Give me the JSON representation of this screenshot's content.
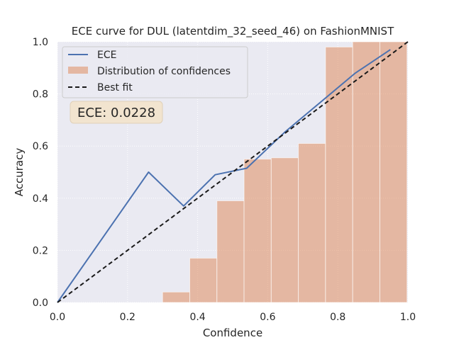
{
  "chart_data": {
    "type": "bar",
    "title": "ECE curve for DUL (latentdim_32_seed_46) on FashionMNIST",
    "xlabel": "Confidence",
    "ylabel": "Accuracy",
    "xlim": [
      0.0,
      1.0
    ],
    "ylim": [
      0.0,
      1.0
    ],
    "xticks": [
      "0.0",
      "0.2",
      "0.4",
      "0.6",
      "0.8",
      "1.0"
    ],
    "yticks": [
      "0.0",
      "0.2",
      "0.4",
      "0.6",
      "0.8",
      "1.0"
    ],
    "grid": true,
    "legend_placement": "upper-left",
    "bars": {
      "name": "Distribution of confidences",
      "color": "#dd8452",
      "bin_width": 0.0775,
      "lefts": [
        0.3,
        0.3775,
        0.455,
        0.5325,
        0.61,
        0.6875,
        0.765,
        0.8425,
        0.92
      ],
      "values": [
        0.04,
        0.17,
        0.39,
        0.55,
        0.555,
        0.61,
        0.98,
        1.0,
        1.0
      ]
    },
    "series": [
      {
        "name": "ECE",
        "color": "#4c72b0",
        "style": "solid",
        "x": [
          0.0,
          0.26,
          0.36,
          0.45,
          0.54,
          0.65,
          0.85,
          0.95
        ],
        "y": [
          0.0,
          0.5,
          0.37,
          0.49,
          0.515,
          0.655,
          0.88,
          0.97
        ]
      },
      {
        "name": "Best fit",
        "color": "#1a1a1a",
        "style": "dashed",
        "x": [
          0.0,
          1.0
        ],
        "y": [
          0.0,
          1.0
        ]
      }
    ],
    "annotation": {
      "text": "ECE: 0.0228"
    },
    "colors": {
      "plot_background": "#eaeaf2",
      "grid": "#ffffff",
      "annotation_box": "#f2e4cf"
    }
  }
}
